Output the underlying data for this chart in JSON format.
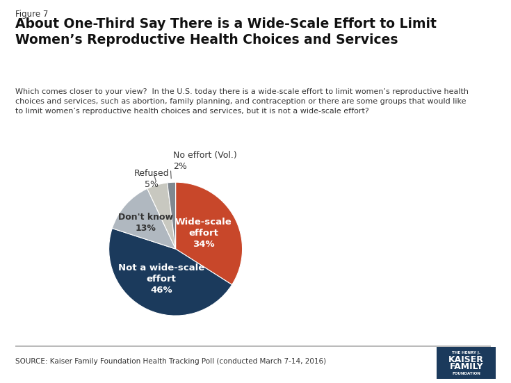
{
  "figure_label": "Figure 7",
  "title": "About One-Third Say There is a Wide-Scale Effort to Limit\nWomen’s Reproductive Health Choices and Services",
  "subtitle": "Which comes closer to your view?  In the U.S. today there is a wide-scale effort to limit women’s reproductive health\nchoices and services, such as abortion, family planning, and contraception or there are some groups that would like\nto limit women’s reproductive health choices and services, but it is not a wide-scale effort?",
  "source": "SOURCE: Kaiser Family Foundation Health Tracking Poll (conducted March 7-14, 2016)",
  "slices": [
    34,
    46,
    13,
    5,
    2
  ],
  "colors": [
    "#C8472A",
    "#1B3A5C",
    "#B0B8C0",
    "#C8C8C0",
    "#808890"
  ],
  "startangle": 90,
  "background_color": "#FFFFFF"
}
